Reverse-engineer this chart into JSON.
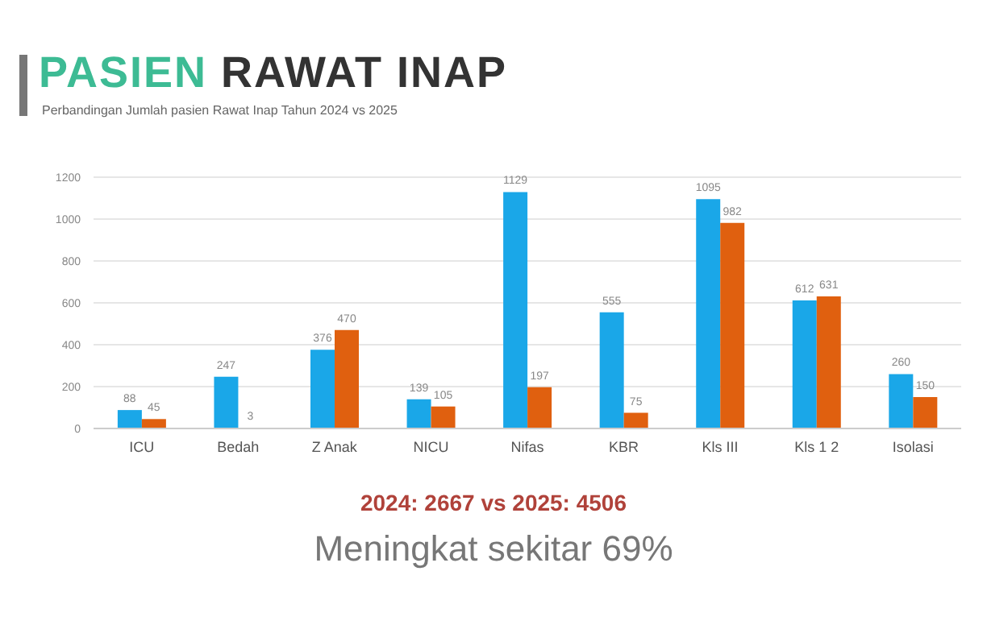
{
  "chart_data": {
    "type": "bar",
    "title": "PASIEN RAWAT INAP",
    "subtitle": "Perbandingan Jumlah pasien Rawat Inap Tahun 2024 vs 2025",
    "categories": [
      "ICU",
      "Bedah",
      "Z Anak",
      "NICU",
      "Nifas",
      "KBR",
      "Kls III",
      "Kls 1 2",
      "Isolasi"
    ],
    "series": [
      {
        "color": "#1aa7e8",
        "values": [
          88,
          247,
          376,
          139,
          1129,
          555,
          1095,
          612,
          260
        ]
      },
      {
        "color": "#e0600f",
        "values": [
          45,
          3,
          470,
          105,
          197,
          75,
          982,
          631,
          150
        ]
      }
    ],
    "ylim": [
      0,
      1200
    ],
    "yticks": [
      0,
      200,
      400,
      600,
      800,
      1000,
      1200
    ],
    "grid": "y",
    "data_labels": true,
    "legend": false,
    "annotations": [
      "2024: 2667 vs 2025: 4506",
      "Meningkat sekitar 69%"
    ]
  }
}
